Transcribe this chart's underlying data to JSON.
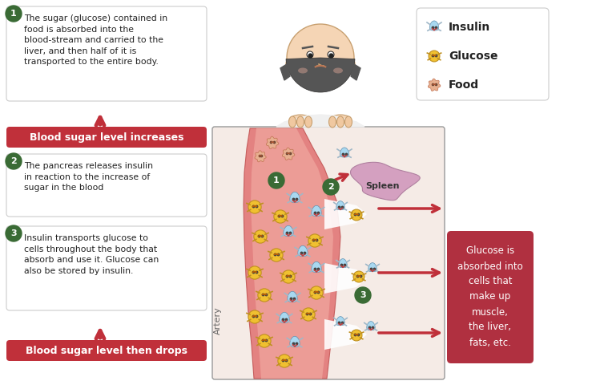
{
  "bg_color": "#ffffff",
  "step1_text": "The sugar (glucose) contained in\nfood is absorbed into the\nblood-stream and carried to the\nliver, and then half of it is\ntransported to the entire body.",
  "step2_text": "The pancreas releases insulin\nin reaction to the increase of\nsugar in the blood",
  "step3_text": "Insulin transports glucose to\ncells throughout the body that\nabsorb and use it. Glucose can\nalso be stored by insulin.",
  "banner1_text": "Blood sugar level increases",
  "banner2_text": "Blood sugar level then drops",
  "right_box_text": "Glucose is\nabsorbed into\ncells that\nmake up\nmuscle,\nthe liver,\nfats, etc.",
  "spleen_text": "Spleen",
  "artery_text": "Artery",
  "legend_insulin": "Insulin",
  "legend_glucose": "Glucose",
  "legend_food": "Food",
  "banner_color": "#c0303a",
  "banner_text_color": "#ffffff",
  "step_circle_color": "#3a6b35",
  "step_circle_text_color": "#ffffff",
  "artery_outer_color": "#e8a898",
  "artery_inner_color": "#e87070",
  "panel_bg": "#f9e8e4",
  "spleen_color": "#d4a0c0",
  "right_box_color": "#b03040",
  "border_color": "#cccccc",
  "insulin_color": "#a8d8f0",
  "glucose_color": "#f0c030",
  "food_color": "#e8b090",
  "legend_box_border": "#cccccc",
  "skin_color": "#f5d5b5",
  "hair_color": "#555555",
  "shirt_color": "#f0f0f0"
}
